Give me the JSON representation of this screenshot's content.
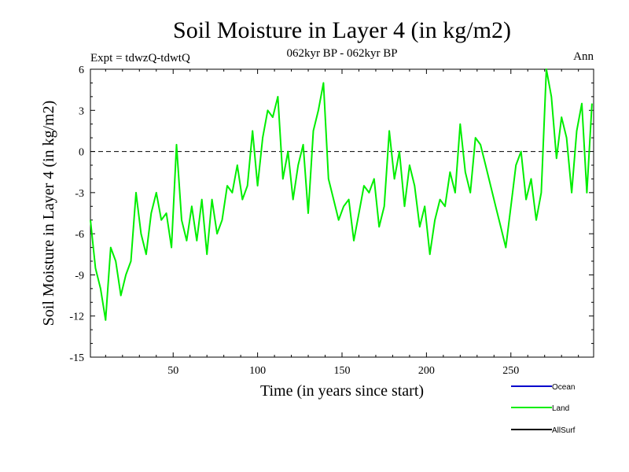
{
  "chart_data": {
    "type": "line",
    "title": "Soil Moisture in Layer 4 (in kg/m2)",
    "subtitle": "062kyr BP - 062kyr BP",
    "experiment_label": "Expt = tdwzQ-tdwtQ",
    "period_label": "Ann",
    "xlabel": "Time (in years since start)",
    "ylabel": "Soil Moisture in Layer 4 (in kg/m2)",
    "xlim": [
      1,
      299
    ],
    "ylim": [
      -15,
      6
    ],
    "x_ticks": [
      50,
      100,
      150,
      200,
      250
    ],
    "y_ticks": [
      -15,
      -12,
      -9,
      -6,
      -3,
      0,
      3,
      6
    ],
    "reference_line": {
      "y": 0,
      "style": "dashed"
    },
    "legend": [
      {
        "name": "Ocean",
        "color": "#0000cc"
      },
      {
        "name": "Land",
        "color": "#00ee00"
      },
      {
        "name": "AllSurf",
        "color": "#000000"
      }
    ],
    "series": [
      {
        "name": "Land",
        "color": "#00ee00",
        "x": [
          1,
          4,
          7,
          10,
          13,
          16,
          19,
          22,
          25,
          28,
          31,
          34,
          37,
          40,
          43,
          46,
          49,
          52,
          55,
          58,
          61,
          64,
          67,
          70,
          73,
          76,
          79,
          82,
          85,
          88,
          91,
          94,
          97,
          100,
          103,
          106,
          109,
          112,
          115,
          118,
          121,
          124,
          127,
          130,
          133,
          136,
          139,
          142,
          145,
          148,
          151,
          154,
          157,
          160,
          163,
          166,
          169,
          172,
          175,
          178,
          181,
          184,
          187,
          190,
          193,
          196,
          199,
          202,
          205,
          208,
          211,
          214,
          217,
          220,
          223,
          226,
          229,
          232,
          235,
          238,
          241,
          244,
          247,
          250,
          253,
          256,
          259,
          262,
          265,
          268,
          271,
          274,
          277,
          280,
          283,
          286,
          289,
          292,
          295,
          298
        ],
        "values": [
          -5.0,
          -8.5,
          -10.0,
          -12.3,
          -7.0,
          -8.0,
          -10.5,
          -9.0,
          -8.0,
          -3.0,
          -6.0,
          -7.5,
          -4.5,
          -3.0,
          -5.0,
          -4.5,
          -7.0,
          0.5,
          -5.0,
          -6.5,
          -4.0,
          -6.5,
          -3.5,
          -7.5,
          -3.5,
          -6.0,
          -5.0,
          -2.5,
          -3.0,
          -1.0,
          -3.5,
          -2.5,
          1.5,
          -2.5,
          1.0,
          3.0,
          2.5,
          4.0,
          -2.0,
          0.0,
          -3.5,
          -1.0,
          0.5,
          -4.5,
          1.5,
          3.0,
          5.0,
          -2.0,
          -3.5,
          -5.0,
          -4.0,
          -3.5,
          -6.5,
          -4.5,
          -2.5,
          -3.0,
          -2.0,
          -5.5,
          -4.0,
          1.5,
          -2.0,
          0.0,
          -4.0,
          -1.0,
          -2.5,
          -5.5,
          -4.0,
          -7.5,
          -5.0,
          -3.5,
          -4.0,
          -1.5,
          -3.0,
          2.0,
          -1.5,
          -3.0,
          1.0,
          0.5,
          -1.0,
          -2.5,
          -4.0,
          -5.5,
          -7.0,
          -4.0,
          -1.0,
          0.0,
          -3.5,
          -2.0,
          -5.0,
          -3.0,
          6.0,
          4.0,
          -0.5,
          2.5,
          1.0,
          -3.0,
          1.5,
          3.5,
          -3.0,
          3.5
        ]
      }
    ]
  }
}
